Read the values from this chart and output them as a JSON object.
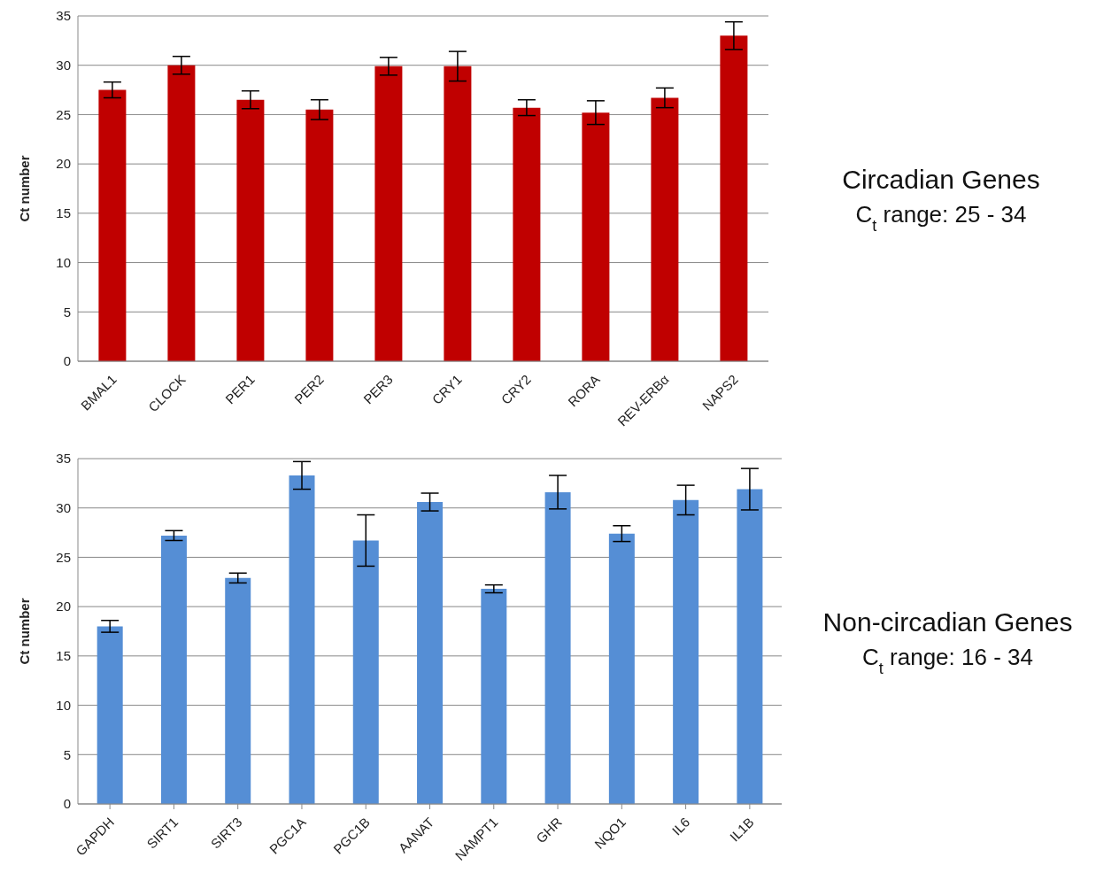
{
  "chart_data": [
    {
      "type": "bar",
      "annotations": [
        "Circadian Genes",
        "C$_{t}$ range: 25 - 34"
      ],
      "ylabel": "Ct number",
      "categories": [
        "BMAL1",
        "CLOCK",
        "PER1",
        "PER2",
        "PER3",
        "CRY1",
        "CRY2",
        "RORA",
        "REV-ERBα",
        "NAPS2"
      ],
      "values": [
        27.5,
        30.0,
        26.5,
        25.5,
        29.9,
        29.9,
        25.7,
        25.2,
        26.7,
        33.0
      ],
      "errors": [
        0.8,
        0.9,
        0.9,
        1.0,
        0.9,
        1.5,
        0.8,
        1.2,
        1.0,
        1.4
      ],
      "color": "#c00000",
      "ylim": [
        0,
        35
      ],
      "yticks": [
        0,
        5,
        10,
        15,
        20,
        25,
        30,
        35
      ],
      "grid": "y"
    },
    {
      "type": "bar",
      "annotations": [
        "Non-circadian Genes",
        "C$_{t}$ range: 16 - 34"
      ],
      "ylabel": "Ct number",
      "categories": [
        "GAPDH",
        "SIRT1",
        "SIRT3",
        "PGC1A",
        "PGC1B",
        "AANAT",
        "NAMPT1",
        "GHR",
        "NQO1",
        "IL6",
        "IL1B"
      ],
      "values": [
        18.0,
        27.2,
        22.9,
        33.3,
        26.7,
        30.6,
        21.8,
        31.6,
        27.4,
        30.8,
        31.9
      ],
      "errors": [
        0.6,
        0.5,
        0.5,
        1.4,
        2.6,
        0.9,
        0.4,
        1.7,
        0.8,
        1.5,
        2.1
      ],
      "color": "#558ed5",
      "ylim": [
        0,
        35
      ],
      "yticks": [
        0,
        5,
        10,
        15,
        20,
        25,
        30,
        35
      ],
      "grid": "y"
    }
  ]
}
